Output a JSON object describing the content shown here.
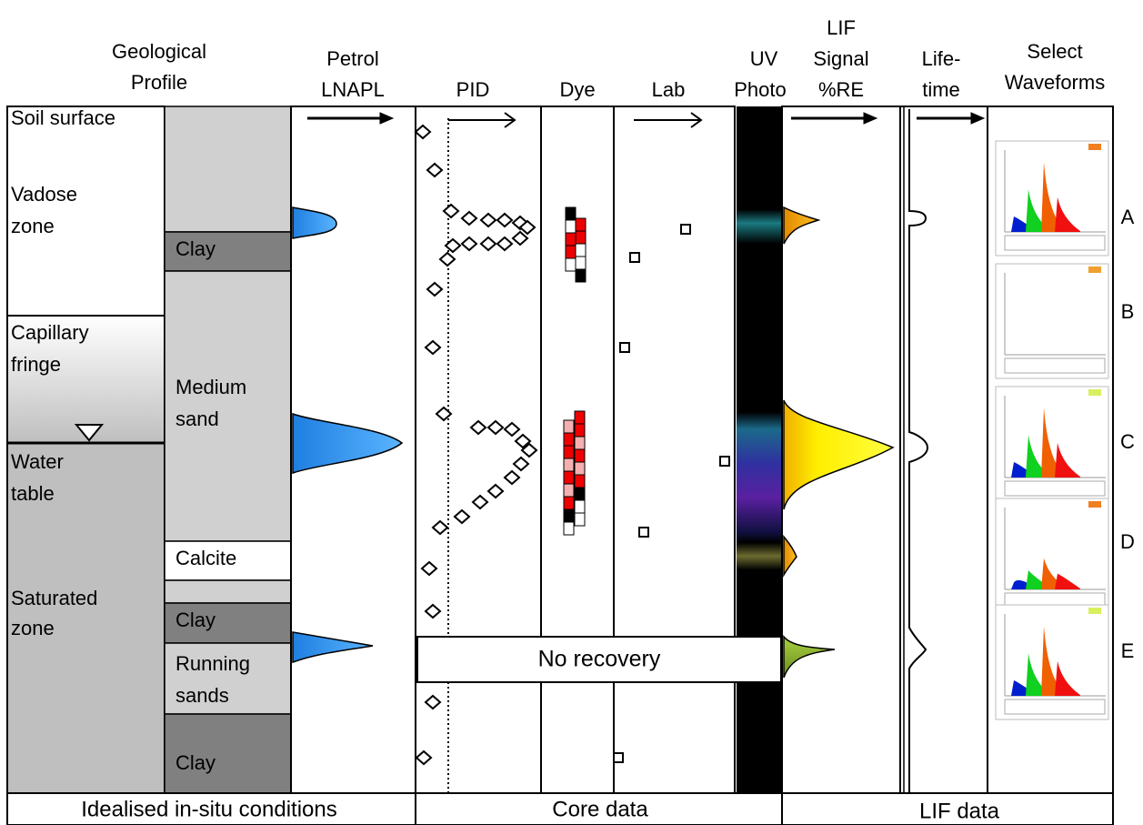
{
  "headers": {
    "geological_profile": [
      "Geological",
      "Profile"
    ],
    "petrol_lnapl": [
      "Petrol",
      "LNAPL"
    ],
    "pid": "PID",
    "dye": "Dye",
    "lab": "Lab",
    "uv_photo": [
      "UV",
      "Photo"
    ],
    "lif_signal": [
      "LIF",
      "Signal",
      "%RE"
    ],
    "lifetime": [
      "Life-",
      "time"
    ],
    "select_waveforms": [
      "Select",
      "Waveforms"
    ]
  },
  "zones": {
    "soil_surface": "Soil surface",
    "vadose": [
      "Vadose",
      "zone"
    ],
    "capillary": [
      "Capillary",
      "fringe"
    ],
    "water_table": [
      "Water",
      "table"
    ],
    "saturated": [
      "Saturated",
      "zone"
    ]
  },
  "layers": {
    "clay_1": "Clay",
    "medium_sand": [
      "Medium",
      "sand"
    ],
    "calcite": "Calcite",
    "clay_2": "Clay",
    "running_sands": [
      "Running",
      "sands"
    ],
    "clay_3": "Clay"
  },
  "no_recovery": "No recovery",
  "footer": [
    "Idealised in-situ conditions",
    "Core data",
    "LIF data"
  ],
  "waveform_labels": [
    "A",
    "B",
    "C",
    "D",
    "E"
  ]
}
